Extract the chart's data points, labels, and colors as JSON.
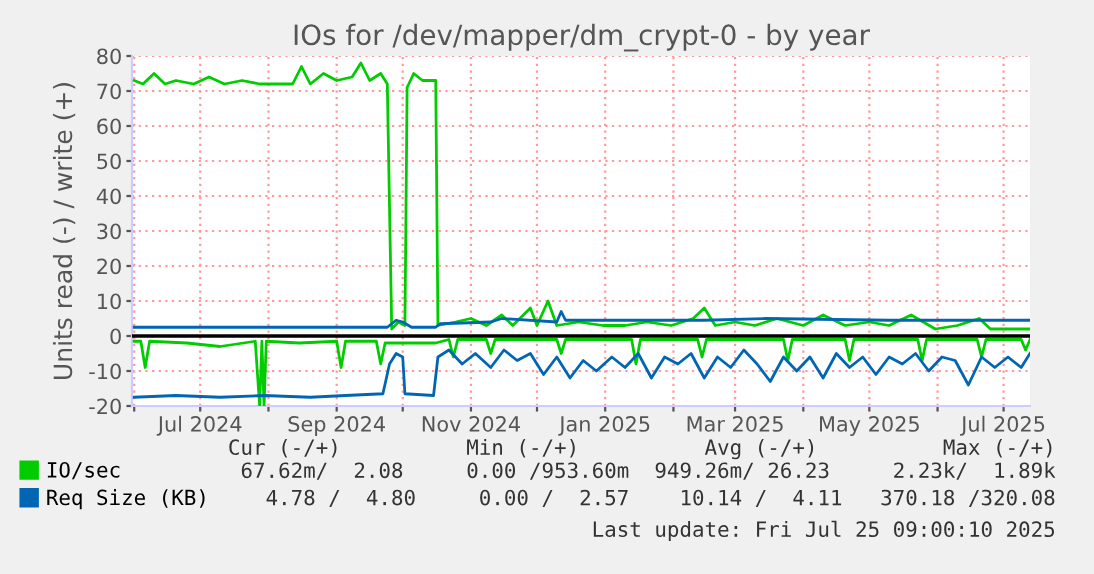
{
  "chart_data": {
    "type": "line",
    "title": "IOs for /dev/mapper/dm_crypt-0 - by year",
    "ylabel": "Units read (-) / write (+)",
    "xlim": [
      "2024-05-31",
      "2025-07-13"
    ],
    "xticks": [
      {
        "value": "2024-06-01",
        "label": null
      },
      {
        "value": "2024-07-01",
        "label": "Jul 2024"
      },
      {
        "value": "2024-08-01",
        "label": null
      },
      {
        "value": "2024-09-01",
        "label": "Sep 2024"
      },
      {
        "value": "2024-10-01",
        "label": null
      },
      {
        "value": "2024-11-01",
        "label": "Nov 2024"
      },
      {
        "value": "2024-12-01",
        "label": null
      },
      {
        "value": "2025-01-01",
        "label": "Jan 2025"
      },
      {
        "value": "2025-02-01",
        "label": null
      },
      {
        "value": "2025-03-01",
        "label": "Mar 2025"
      },
      {
        "value": "2025-04-01",
        "label": null
      },
      {
        "value": "2025-05-01",
        "label": "May 2025"
      },
      {
        "value": "2025-06-01",
        "label": null
      },
      {
        "value": "2025-07-01",
        "label": "Jul 2025"
      }
    ],
    "ylim": [
      -20,
      80
    ],
    "yticks": [
      -20,
      -10,
      0,
      10,
      20,
      30,
      40,
      50,
      60,
      70,
      80
    ],
    "grid": true,
    "legend": "bottom left",
    "ref_lines": [
      {
        "axis": "y",
        "value": 0,
        "color": "#000000"
      }
    ],
    "series": [
      {
        "name": "IO/sec",
        "color": "#00cc00",
        "x": [
          "2024-06-01",
          "2024-06-05",
          "2024-06-10",
          "2024-06-15",
          "2024-06-20",
          "2024-06-28",
          "2024-07-05",
          "2024-07-12",
          "2024-07-20",
          "2024-07-28",
          "2024-08-05",
          "2024-08-12",
          "2024-08-16",
          "2024-08-20",
          "2024-08-26",
          "2024-09-01",
          "2024-09-08",
          "2024-09-12",
          "2024-09-16",
          "2024-09-21",
          "2024-09-24",
          "2024-09-26",
          "2024-09-29",
          "2024-10-02",
          "2024-10-03",
          "2024-10-06",
          "2024-10-10",
          "2024-10-16",
          "2024-10-17",
          "2024-10-25",
          "2024-11-01",
          "2024-11-08",
          "2024-11-15",
          "2024-11-20",
          "2024-11-28",
          "2024-12-01",
          "2024-12-06",
          "2024-12-10",
          "2024-12-20",
          "2024-12-31",
          "2025-01-10",
          "2025-01-20",
          "2025-01-31",
          "2025-02-10",
          "2025-02-15",
          "2025-02-20",
          "2025-03-01",
          "2025-03-10",
          "2025-03-20",
          "2025-04-01",
          "2025-04-10",
          "2025-04-20",
          "2025-05-01",
          "2025-05-10",
          "2025-05-20",
          "2025-05-31",
          "2025-06-10",
          "2025-06-20",
          "2025-06-25",
          "2025-07-05",
          "2025-07-13"
        ],
        "values": [
          73,
          72,
          75,
          72,
          73,
          72,
          74,
          72,
          73,
          72,
          72,
          72,
          77,
          72,
          75,
          73,
          74,
          78,
          73,
          75,
          72,
          2,
          4,
          3,
          71,
          75,
          73,
          73,
          3,
          4,
          5,
          3,
          6,
          3,
          8,
          3,
          10,
          3,
          4,
          3,
          3,
          4,
          3,
          5,
          8,
          3,
          4,
          3,
          5,
          3,
          6,
          3,
          4,
          3,
          6,
          2,
          3,
          5,
          2,
          2,
          2
        ]
      },
      {
        "color": "#00cc00",
        "x": [
          "2024-06-01",
          "2024-06-04",
          "2024-06-06",
          "2024-06-08",
          "2024-06-25",
          "2024-07-10",
          "2024-07-26",
          "2024-07-28",
          "2024-07-29",
          "2024-07-30",
          "2024-07-31",
          "2024-08-15",
          "2024-09-01",
          "2024-09-03",
          "2024-09-05",
          "2024-09-19",
          "2024-09-21",
          "2024-09-23",
          "2024-10-10",
          "2024-10-16",
          "2024-10-22",
          "2024-10-24",
          "2024-10-26",
          "2024-11-08",
          "2024-11-10",
          "2024-11-12",
          "2024-12-10",
          "2024-12-12",
          "2024-12-14",
          "2025-01-13",
          "2025-01-15",
          "2025-01-17",
          "2025-02-12",
          "2025-02-14",
          "2025-02-16",
          "2025-03-23",
          "2025-03-25",
          "2025-03-27",
          "2025-04-20",
          "2025-04-22",
          "2025-04-24",
          "2025-05-23",
          "2025-05-25",
          "2025-05-27",
          "2025-06-19",
          "2025-06-21",
          "2025-06-23",
          "2025-07-09",
          "2025-07-11",
          "2025-07-13"
        ],
        "values": [
          -1.5,
          -1.5,
          -9,
          -1.5,
          -2,
          -3,
          -1.5,
          -20,
          -1.5,
          -20,
          -1.5,
          -2,
          -1.5,
          -9,
          -1.5,
          -1.5,
          -8,
          -2,
          -2,
          -2,
          -1,
          -6,
          -1,
          -1,
          -5,
          -1,
          -1,
          -5,
          -1,
          -1,
          -8,
          -1,
          -1,
          -6,
          -1,
          -1,
          -7,
          -1,
          -1,
          -7,
          -1,
          -1,
          -7,
          -1,
          -1,
          -6,
          -1,
          -1,
          -4,
          -1
        ]
      },
      {
        "name": "Req Size (KB)",
        "color": "#0066b3",
        "x": [
          "2024-06-01",
          "2024-09-24",
          "2024-09-28",
          "2024-10-01",
          "2024-10-05",
          "2024-10-16",
          "2024-10-18",
          "2024-11-10",
          "2024-11-15",
          "2024-12-10",
          "2024-12-12",
          "2024-12-14",
          "2025-02-15",
          "2025-03-15",
          "2025-05-10",
          "2025-07-13"
        ],
        "values": [
          2.5,
          2.5,
          4.5,
          4,
          2.5,
          2.5,
          3.5,
          4,
          5,
          4,
          7,
          4.5,
          4.5,
          5,
          4.5,
          4.5
        ]
      },
      {
        "color": "#0066b3",
        "x": [
          "2024-06-01",
          "2024-06-20",
          "2024-07-10",
          "2024-07-30",
          "2024-08-20",
          "2024-09-05",
          "2024-09-22",
          "2024-09-25",
          "2024-09-28",
          "2024-10-01",
          "2024-10-02",
          "2024-10-15",
          "2024-10-17",
          "2024-10-22",
          "2024-10-28",
          "2024-11-03",
          "2024-11-10",
          "2024-11-16",
          "2024-11-22",
          "2024-11-28",
          "2024-12-04",
          "2024-12-10",
          "2024-12-16",
          "2024-12-22",
          "2024-12-28",
          "2025-01-04",
          "2025-01-10",
          "2025-01-16",
          "2025-01-22",
          "2025-01-28",
          "2025-02-03",
          "2025-02-09",
          "2025-02-15",
          "2025-02-21",
          "2025-02-27",
          "2025-03-05",
          "2025-03-11",
          "2025-03-17",
          "2025-03-23",
          "2025-03-29",
          "2025-04-04",
          "2025-04-10",
          "2025-04-16",
          "2025-04-22",
          "2025-04-28",
          "2025-05-04",
          "2025-05-10",
          "2025-05-16",
          "2025-05-22",
          "2025-05-28",
          "2025-06-03",
          "2025-06-09",
          "2025-06-15",
          "2025-06-21",
          "2025-06-27",
          "2025-07-03",
          "2025-07-09",
          "2025-07-13"
        ],
        "values": [
          -17.5,
          -17,
          -17.5,
          -17,
          -17.5,
          -17,
          -16.5,
          -8,
          -5,
          -6,
          -16.5,
          -17,
          -6,
          -4,
          -8,
          -5,
          -9,
          -4,
          -7,
          -5,
          -11,
          -6,
          -12,
          -7,
          -10,
          -6,
          -9,
          -5,
          -12,
          -6,
          -8,
          -5,
          -12,
          -6,
          -9,
          -4,
          -8,
          -13,
          -6,
          -10,
          -6,
          -12,
          -5,
          -9,
          -6,
          -11,
          -6,
          -8,
          -5,
          -10,
          -6,
          -7,
          -14,
          -6,
          -9,
          -6,
          -9,
          -5
        ]
      }
    ],
    "annotations": [
      "Cur (-/+)          Min (-/+)          Avg (-/+)          Max (-/+)",
      "67.62m/  2.08     0.00 /953.60m  949.26m/ 26.23     2.23k/  1.89k",
      " 4.78 /  4.80     0.00 /  2.57    10.14 /  4.11   370.18 /320.08",
      "Last update: Fri Jul 25 09:00:10 2025"
    ]
  }
}
